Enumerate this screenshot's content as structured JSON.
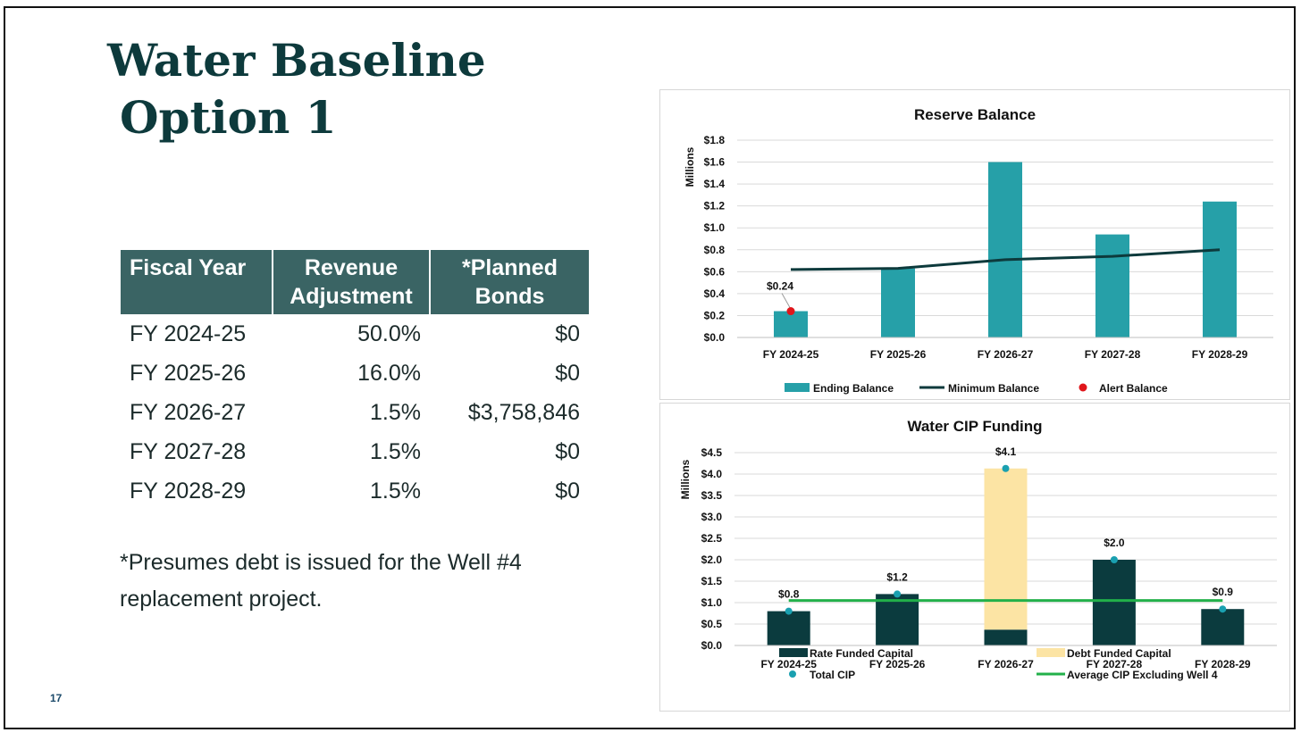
{
  "slide": {
    "title_line1": "Water Baseline",
    "title_line2": "Option 1",
    "page_number": "17",
    "footnote": "*Presumes debt is issued for the Well #4 replacement project."
  },
  "table": {
    "headers": [
      "Fiscal Year",
      "Revenue Adjustment",
      "*Planned Bonds"
    ],
    "rows": [
      [
        "FY 2024-25",
        "50.0%",
        "$0"
      ],
      [
        "FY 2025-26",
        "16.0%",
        "$0"
      ],
      [
        "FY 2026-27",
        "1.5%",
        "$3,758,846"
      ],
      [
        "FY 2027-28",
        "1.5%",
        "$0"
      ],
      [
        "FY 2028-29",
        "1.5%",
        "$0"
      ]
    ]
  },
  "colors": {
    "header_bg": "#3a6464",
    "title": "#0d3a3c",
    "ending_balance": "#26a0a8",
    "minimum_balance": "#0d3a3c",
    "alert_balance": "#e0161b",
    "rate_funded": "#0b3b3e",
    "debt_funded": "#fce4a4",
    "total_cip": "#1aa0b0",
    "average_cip": "#22b04a"
  },
  "chart_data": [
    {
      "type": "bar",
      "title": "Reserve Balance",
      "ylabel": "Millions",
      "xlabel": "",
      "categories": [
        "FY 2024-25",
        "FY 2025-26",
        "FY 2026-27",
        "FY 2027-28",
        "FY 2028-29"
      ],
      "ylim": [
        0,
        1.8
      ],
      "yticks": [
        0,
        0.2,
        0.4,
        0.6,
        0.8,
        1.0,
        1.2,
        1.4,
        1.6,
        1.8
      ],
      "ytick_labels": [
        "$0.0",
        "$0.2",
        "$0.4",
        "$0.6",
        "$0.8",
        "$1.0",
        "$1.2",
        "$1.4",
        "$1.6",
        "$1.8"
      ],
      "grid": true,
      "legend_position": "bottom",
      "series": [
        {
          "name": "Ending Balance",
          "kind": "bar",
          "values": [
            0.24,
            0.63,
            1.6,
            0.94,
            1.24
          ]
        },
        {
          "name": "Minimum Balance",
          "kind": "line",
          "values": [
            0.62,
            0.63,
            0.71,
            0.74,
            0.8
          ]
        },
        {
          "name": "Alert Balance",
          "kind": "point",
          "values": [
            0.24,
            null,
            null,
            null,
            null
          ],
          "labels": [
            "$0.24",
            "",
            "",
            "",
            ""
          ]
        }
      ]
    },
    {
      "type": "bar",
      "title": "Water CIP Funding",
      "ylabel": "Millions",
      "xlabel": "",
      "categories": [
        "FY 2024-25",
        "FY 2025-26",
        "FY 2026-27",
        "FY 2027-28",
        "FY 2028-29"
      ],
      "ylim": [
        0,
        4.5
      ],
      "yticks": [
        0,
        0.5,
        1.0,
        1.5,
        2.0,
        2.5,
        3.0,
        3.5,
        4.0,
        4.5
      ],
      "ytick_labels": [
        "$0.0",
        "$0.5",
        "$1.0",
        "$1.5",
        "$2.0",
        "$2.5",
        "$3.0",
        "$3.5",
        "$4.0",
        "$4.5"
      ],
      "grid": true,
      "stacked": true,
      "legend_position": "bottom",
      "series": [
        {
          "name": "Rate Funded Capital",
          "kind": "bar",
          "values": [
            0.8,
            1.2,
            0.37,
            2.0,
            0.85
          ]
        },
        {
          "name": "Debt Funded Capital",
          "kind": "bar",
          "values": [
            0,
            0,
            3.76,
            0,
            0
          ]
        },
        {
          "name": "Total CIP",
          "kind": "point",
          "values": [
            0.8,
            1.2,
            4.13,
            2.0,
            0.85
          ],
          "labels": [
            "$0.8",
            "$1.2",
            "$4.1",
            "$2.0",
            "$0.9"
          ]
        },
        {
          "name": "Average CIP Excluding Well 4",
          "kind": "line",
          "values": [
            1.05,
            1.05,
            1.05,
            1.05,
            1.05
          ]
        }
      ]
    }
  ]
}
